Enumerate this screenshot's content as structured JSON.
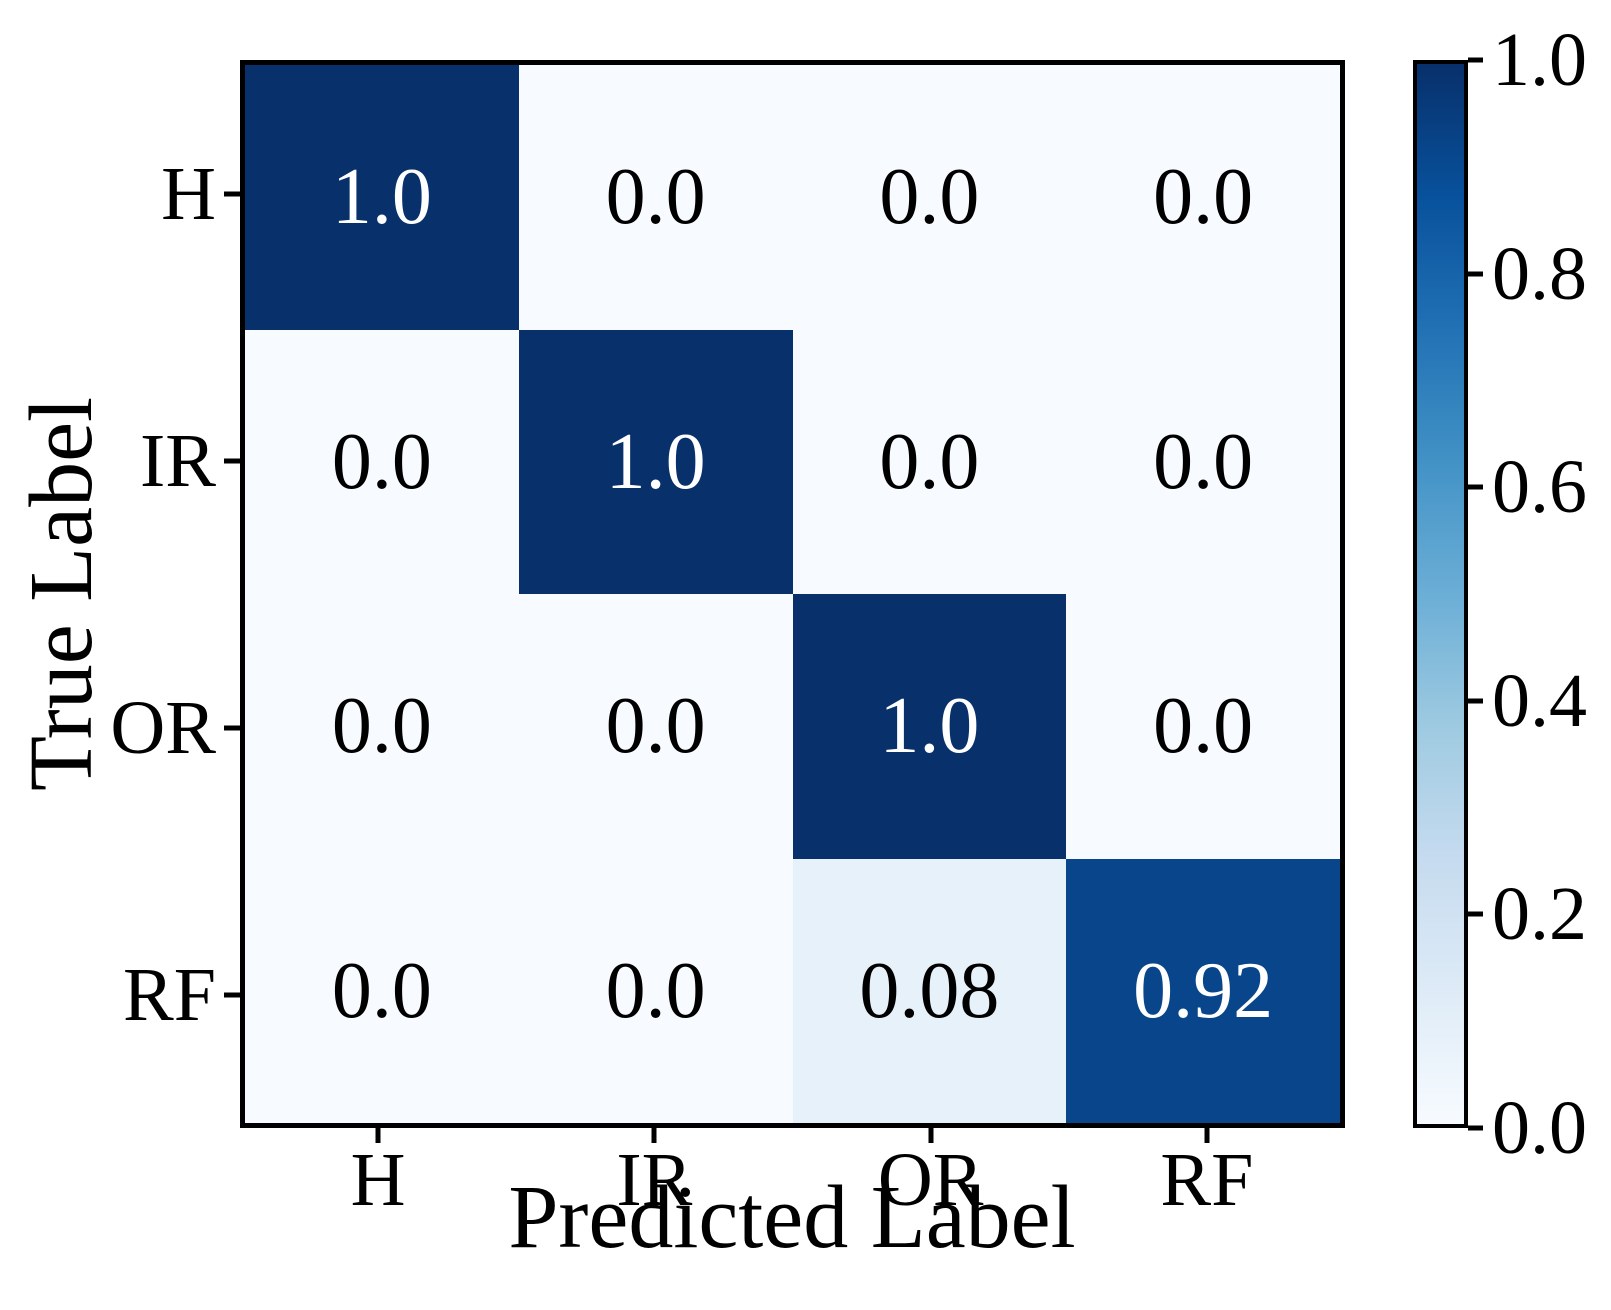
{
  "figure": {
    "background": "#ffffff"
  },
  "chart_data": {
    "type": "heatmap",
    "title": "",
    "xlabel": "Predicted Label",
    "ylabel": "True Label",
    "x_categories": [
      "H",
      "IR",
      "OR",
      "RF"
    ],
    "y_categories": [
      "H",
      "IR",
      "OR",
      "RF"
    ],
    "matrix": [
      [
        1.0,
        0.0,
        0.0,
        0.0
      ],
      [
        0.0,
        1.0,
        0.0,
        0.0
      ],
      [
        0.0,
        0.0,
        1.0,
        0.0
      ],
      [
        0.0,
        0.0,
        0.08,
        0.92
      ]
    ],
    "cell_labels": [
      [
        "1.0",
        "0.0",
        "0.0",
        "0.0"
      ],
      [
        "0.0",
        "1.0",
        "0.0",
        "0.0"
      ],
      [
        "0.0",
        "0.0",
        "1.0",
        "0.0"
      ],
      [
        "0.0",
        "0.0",
        "0.08",
        "0.92"
      ]
    ],
    "colormap": "Blues",
    "value_range": [
      0.0,
      1.0
    ],
    "grid": false,
    "legend_position": "none",
    "colorbar_position": "right",
    "colorbar_tick_labels": [
      "1.0",
      "0.8",
      "0.6",
      "0.4",
      "0.2",
      "0.0"
    ]
  },
  "colors": {
    "axis": "#000000",
    "text_on_dark": "#ffffff",
    "text_on_light": "#000000",
    "cmap_stops": [
      "#f7fbff",
      "#deebf7",
      "#c6dbef",
      "#9ecae1",
      "#6baed6",
      "#4292c6",
      "#2171b5",
      "#08519c",
      "#08306b"
    ]
  }
}
